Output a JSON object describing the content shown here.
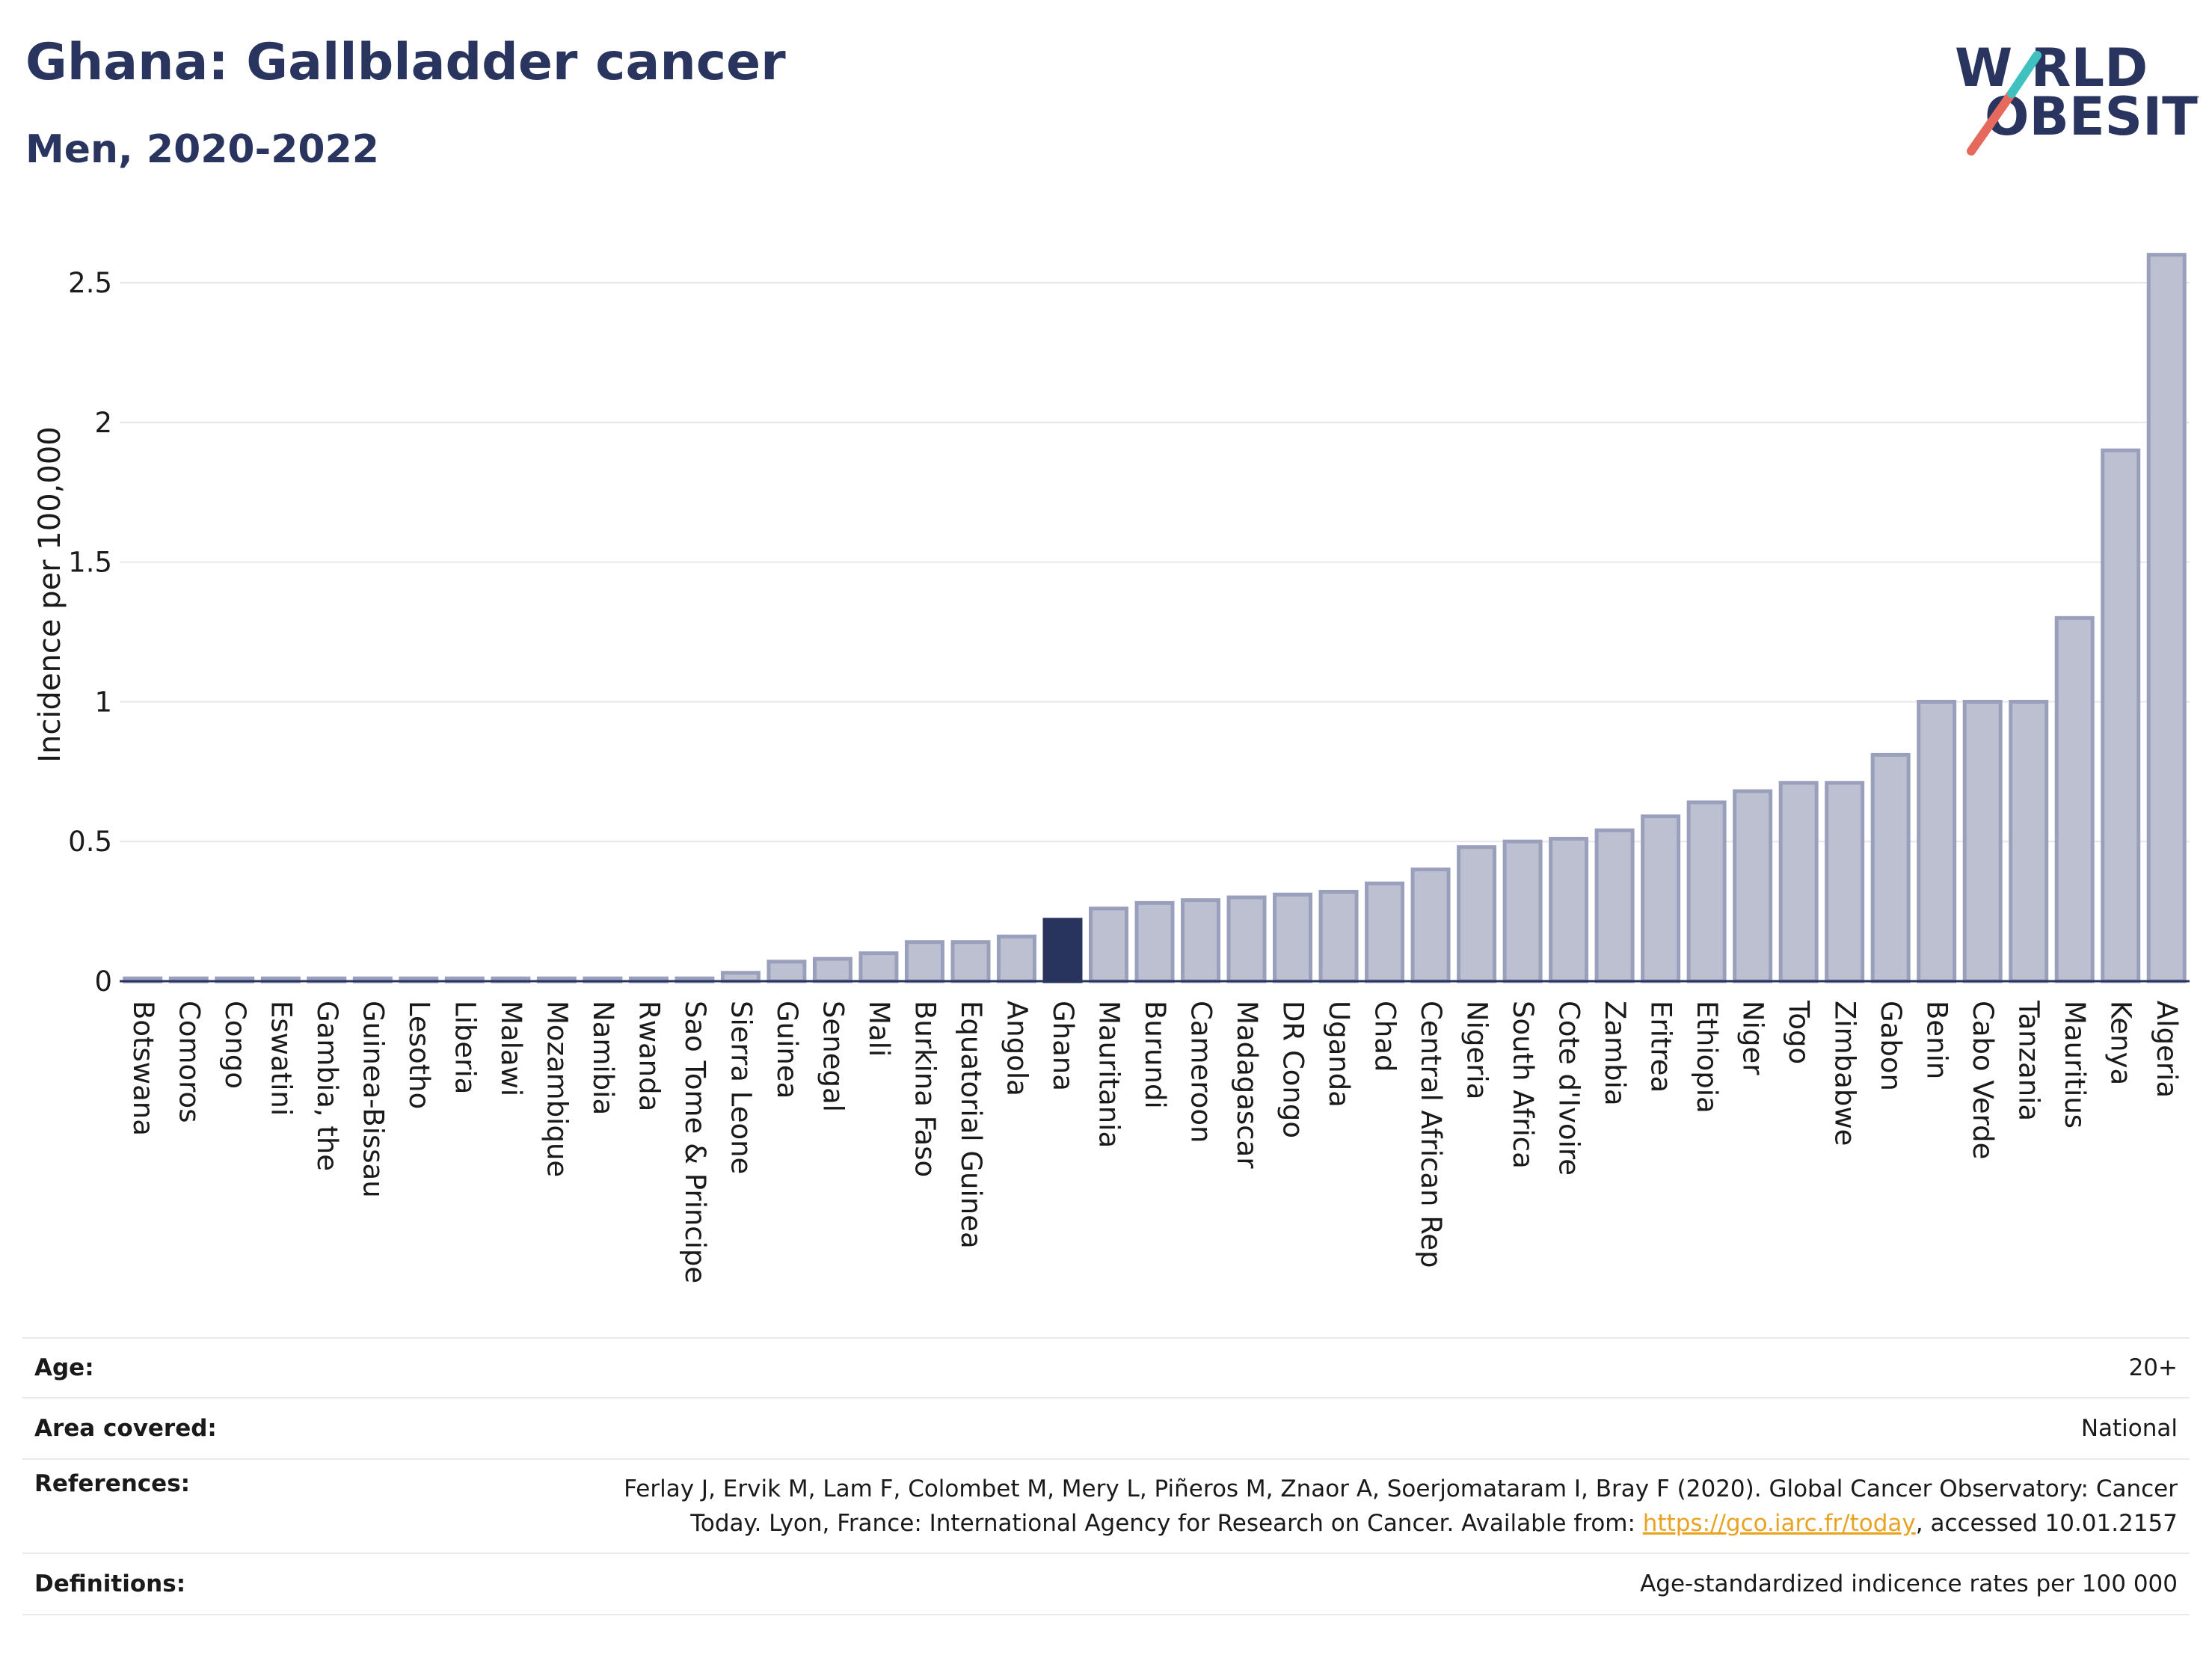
{
  "header": {
    "title": "Ghana: Gallbladder cancer",
    "subtitle": "Men, 2020-2022"
  },
  "logo": {
    "line1": "W RLD",
    "line2": "OBESITY",
    "alt_text": "WORLD OBESITY",
    "colors": {
      "text": "#2a355f",
      "slash_red": "#e56a5d",
      "slash_teal": "#3fc1c0"
    }
  },
  "colors": {
    "bar_fill": "#bcc0d1",
    "bar_stroke": "#9aa0bb",
    "highlight_fill": "#28345e",
    "axis": "#2a355f",
    "grid": "#e6e6ee"
  },
  "chart_data": {
    "type": "bar",
    "title": "Ghana: Gallbladder cancer",
    "subtitle": "Men, 2020-2022",
    "xlabel": "",
    "ylabel": "Incidence per 100,000",
    "ylim": [
      0,
      2.65
    ],
    "yticks": [
      0,
      0.5,
      1,
      1.5,
      2,
      2.5
    ],
    "ytick_labels": [
      "0",
      "0.5",
      "1",
      "1.5",
      "2",
      "2.5"
    ],
    "grid": true,
    "legend": "none",
    "highlight": "Ghana",
    "categories": [
      "Botswana",
      "Comoros",
      "Congo",
      "Eswatini",
      "Gambia, the",
      "Guinea-Bissau",
      "Lesotho",
      "Liberia",
      "Malawi",
      "Mozambique",
      "Namibia",
      "Rwanda",
      "Sao Tome & Principe",
      "Sierra Leone",
      "Guinea",
      "Senegal",
      "Mali",
      "Burkina Faso",
      "Equatorial Guinea",
      "Angola",
      "Ghana",
      "Mauritania",
      "Burundi",
      "Cameroon",
      "Madagascar",
      "DR Congo",
      "Uganda",
      "Chad",
      "Central African Rep",
      "Nigeria",
      "South Africa",
      "Cote d'Ivoire",
      "Zambia",
      "Eritrea",
      "Ethiopia",
      "Niger",
      "Togo",
      "Zimbabwe",
      "Gabon",
      "Benin",
      "Cabo Verde",
      "Tanzania",
      "Mauritius",
      "Kenya",
      "Algeria"
    ],
    "values": [
      0.01,
      0.01,
      0.01,
      0.01,
      0.01,
      0.01,
      0.01,
      0.01,
      0.01,
      0.01,
      0.01,
      0.01,
      0.01,
      0.03,
      0.07,
      0.08,
      0.1,
      0.14,
      0.14,
      0.16,
      0.22,
      0.26,
      0.28,
      0.29,
      0.3,
      0.31,
      0.32,
      0.35,
      0.4,
      0.48,
      0.5,
      0.51,
      0.54,
      0.59,
      0.64,
      0.68,
      0.71,
      0.71,
      0.81,
      1.0,
      1.0,
      1.0,
      1.3,
      1.9,
      2.6
    ]
  },
  "info": {
    "age_label": "Age:",
    "age_value": "20+",
    "area_label": "Area covered:",
    "area_value": "National",
    "references_label": "References:",
    "references_line1": "Ferlay J, Ervik M, Lam F, Colombet M, Mery L, Piñeros M, Znaor A, Soerjomataram I, Bray F (2020). Global Cancer Observatory: Cancer",
    "references_line2_pre": "Today. Lyon, France: International Agency for Research on Cancer. Available from: ",
    "references_link": "https://gco.iarc.fr/today",
    "references_line2_post": ", accessed 10.01.2157",
    "definitions_label": "Definitions:",
    "definitions_value": "Age-standardized indicence rates per 100 000"
  }
}
